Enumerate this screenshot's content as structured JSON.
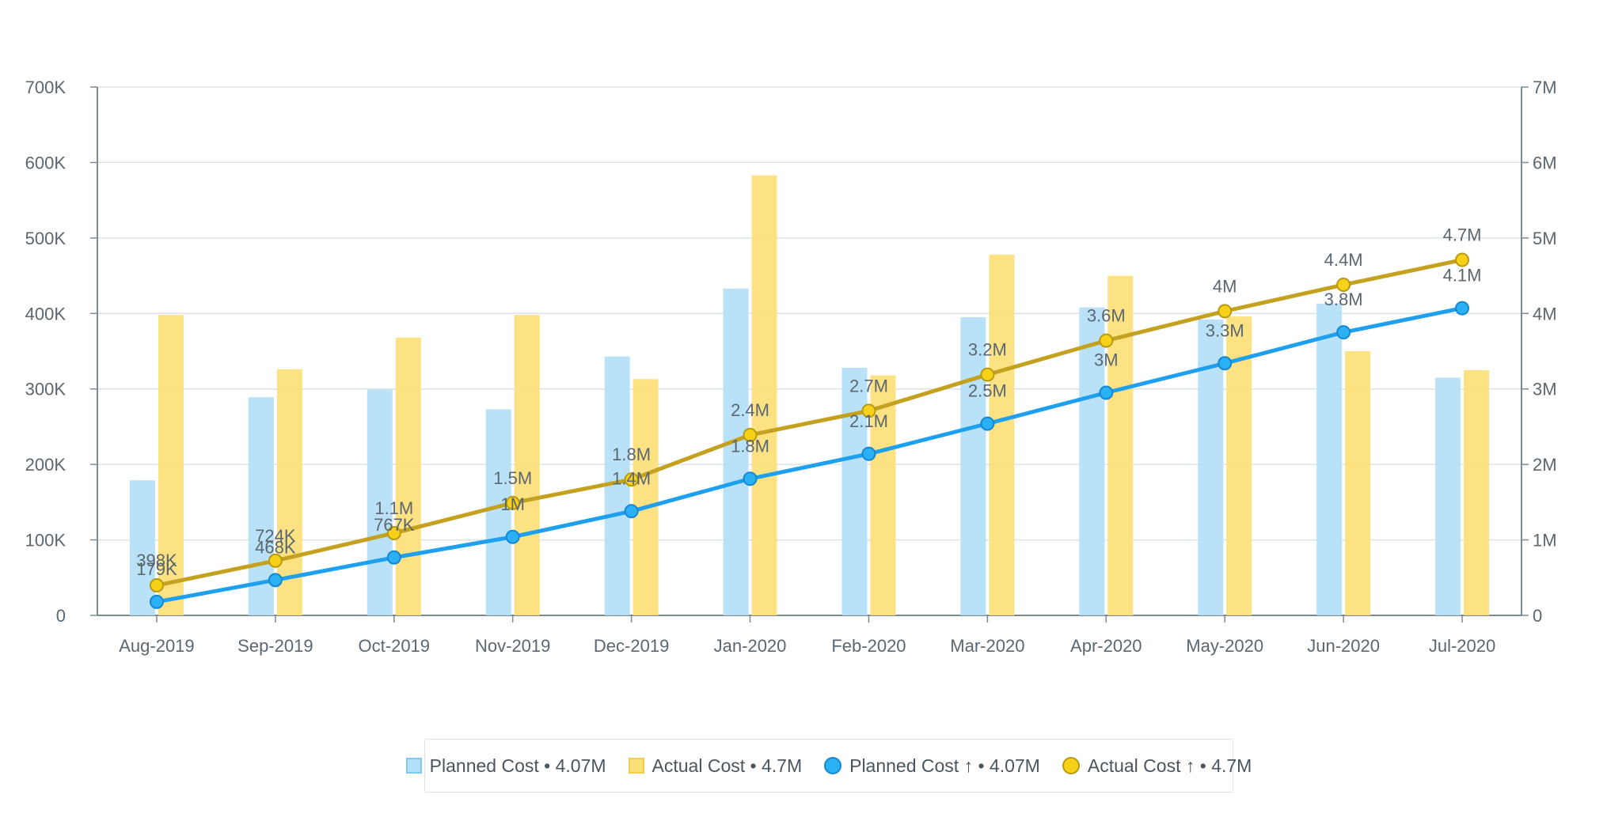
{
  "chart_data": {
    "type": "bar",
    "categories": [
      "Aug-2019",
      "Sep-2019",
      "Oct-2019",
      "Nov-2019",
      "Dec-2019",
      "Jan-2020",
      "Feb-2020",
      "Mar-2020",
      "Apr-2020",
      "May-2020",
      "Jun-2020",
      "Jul-2020"
    ],
    "left_axis": {
      "ylim": [
        0,
        700000
      ],
      "ticks": [
        "0",
        "100K",
        "200K",
        "300K",
        "400K",
        "500K",
        "600K",
        "700K"
      ]
    },
    "right_axis": {
      "ylim": [
        0,
        7000000
      ],
      "ticks": [
        "0",
        "1M",
        "2M",
        "3M",
        "4M",
        "5M",
        "6M",
        "7M"
      ]
    },
    "grid": true,
    "legend_position": "bottom",
    "series": [
      {
        "name": "Planned Cost",
        "type": "bar",
        "axis": "left",
        "color": "#b3e0f7",
        "values": [
          179000,
          289000,
          299000,
          273000,
          343000,
          433000,
          328000,
          395000,
          408000,
          392000,
          413000,
          315000
        ]
      },
      {
        "name": "Actual Cost",
        "type": "bar",
        "axis": "left",
        "color": "#fddf7a",
        "values": [
          398000,
          326000,
          368000,
          398000,
          313000,
          583000,
          318000,
          478000,
          450000,
          396000,
          350000,
          325000
        ]
      },
      {
        "name": "Planned Cost ↑",
        "type": "line",
        "axis": "right",
        "color": "#1fa0ef",
        "values": [
          179000,
          468000,
          767000,
          1040000,
          1380000,
          1810000,
          2140000,
          2540000,
          2950000,
          3340000,
          3750000,
          4070000
        ],
        "labels": [
          "179K",
          "468K",
          "767K",
          "1M",
          "1.4M",
          "1.8M",
          "2.1M",
          "2.5M",
          "3M",
          "3.3M",
          "3.8M",
          "4.1M"
        ]
      },
      {
        "name": "Actual Cost ↑",
        "type": "line",
        "axis": "right",
        "color": "#c4a21f",
        "marker": "#f7d117",
        "values": [
          398000,
          724000,
          1090000,
          1490000,
          1800000,
          2390000,
          2710000,
          3190000,
          3640000,
          4030000,
          4380000,
          4710000
        ],
        "labels": [
          "398K",
          "724K",
          "1.1M",
          "1.5M",
          "1.8M",
          "2.4M",
          "2.7M",
          "3.2M",
          "3.6M",
          "4M",
          "4.4M",
          "4.7M"
        ]
      }
    ],
    "legend": [
      "Planned Cost • 4.07M",
      "Actual Cost • 4.7M",
      "Planned Cost ↑ • 4.07M",
      "Actual Cost ↑ • 4.7M"
    ]
  }
}
